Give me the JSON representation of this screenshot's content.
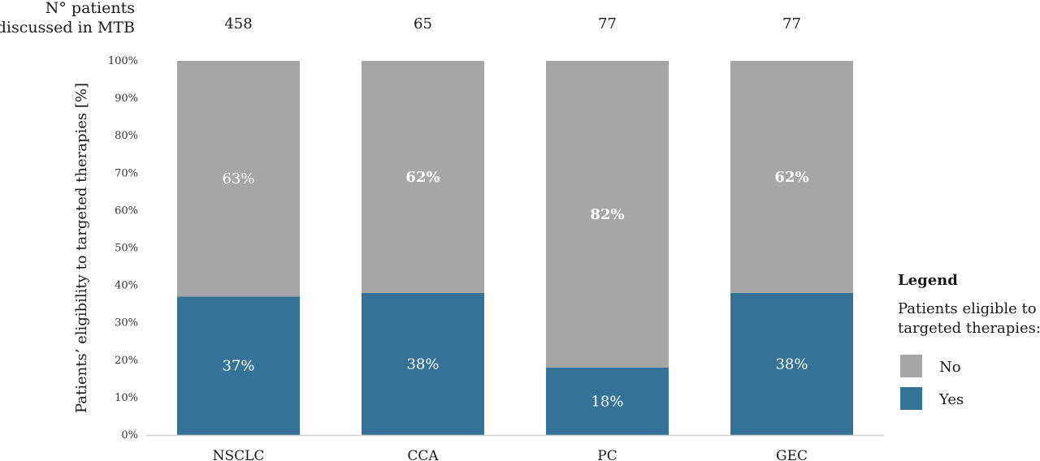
{
  "header_label_lines": [
    "N° patients",
    "discussed in MTB"
  ],
  "legend": {
    "title": "Legend",
    "subtitle_lines": [
      "Patients eligible to",
      "targeted therapies:"
    ]
  },
  "chart_data": {
    "type": "bar",
    "stacked": true,
    "categories": [
      "NSCLC",
      "CCA",
      "PC",
      "GEC"
    ],
    "patient_counts": [
      "458",
      "65",
      "77",
      "77"
    ],
    "ylabel": "Patients’ eligibility to targeted therapies [%]",
    "ylim": [
      0,
      100
    ],
    "yticks": [
      0,
      10,
      20,
      30,
      40,
      50,
      60,
      70,
      80,
      90,
      100
    ],
    "ytick_labels": [
      "0%",
      "10%",
      "20%",
      "30%",
      "40%",
      "50%",
      "60%",
      "70%",
      "80%",
      "90%",
      "100%"
    ],
    "grid": false,
    "legend_position": "right",
    "series": [
      {
        "name": "Yes",
        "color": "#347397",
        "values": [
          37,
          38,
          18,
          38
        ],
        "labels": [
          "37%",
          "38%",
          "18%",
          "38%"
        ]
      },
      {
        "name": "No",
        "color": "#a6a6a6",
        "values": [
          63,
          62,
          82,
          62
        ],
        "labels": [
          "63%",
          "62%",
          "82%",
          "62%"
        ],
        "bold_labels": [
          false,
          true,
          true,
          true
        ]
      }
    ]
  }
}
